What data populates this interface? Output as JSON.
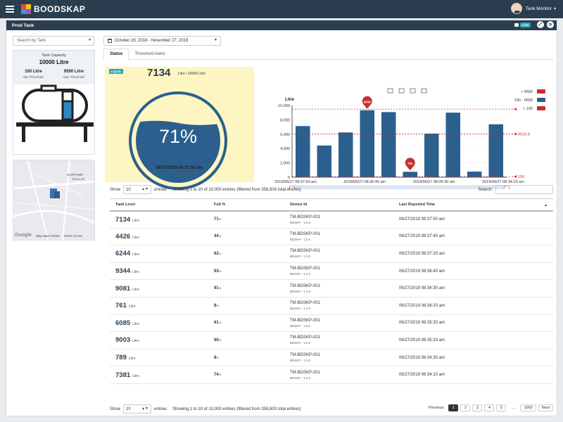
{
  "app": {
    "brand": "BOODSKAP",
    "user": "Tank Monitor"
  },
  "panel": {
    "title": "Prod Tank",
    "live": "Live"
  },
  "filters": {
    "search_placeholder": "Search by Tank",
    "date_range": "October 29, 2018 - November 27, 2019"
  },
  "capacity": {
    "title": "Tank Capacity",
    "value": "10000 Litre",
    "min_value": "100 Litre",
    "min_label": "Min Threshold",
    "max_value": "9500 Litre",
    "max_label": "Max Threshold"
  },
  "map": {
    "label1": "NORTHWE",
    "label2": "DALLAS",
    "google": "Google",
    "attribution": "Map data ©2019",
    "terms": "Terms of Use"
  },
  "tabs": [
    {
      "label": "Status"
    },
    {
      "label": "Threshold Alerts"
    }
  ],
  "level": {
    "badge": "LIQUID",
    "value": "7134",
    "sub": "Litre / 10000 Litre",
    "percent": "71%",
    "fill_fraction": 0.71,
    "time": "06/27/2019 08:37:50 am",
    "time_label": "Last Reported Time"
  },
  "chart_data": {
    "type": "bar",
    "ylabel": "Litre",
    "ylim": [
      0,
      10000
    ],
    "yticks": [
      "0",
      "2,000",
      "4,000",
      "6,000",
      "8,000",
      "10,000"
    ],
    "values": [
      7134,
      4426,
      6244,
      9344,
      9081,
      761,
      6085,
      9003,
      789,
      7381
    ],
    "xtick_labels": [
      "2019/06/27 08:37:50 am",
      "2019/06/27 08:36:40 am",
      "2019/06/27 08:35:30 am",
      "2019/06/27 08:34:10 am"
    ],
    "markers": [
      {
        "label": "9344",
        "value": 9344,
        "index": 3
      },
      {
        "label": "761",
        "value": 761,
        "index": 5
      }
    ],
    "reference_lines": [
      {
        "value": 9500,
        "label": ""
      },
      {
        "value": 6024.8,
        "label": "6024.8"
      },
      {
        "value": 100,
        "label": "100"
      }
    ],
    "legend": [
      {
        "label": "> 9500"
      },
      {
        "label": "100 - 9500"
      },
      {
        "label": "< 100"
      }
    ],
    "legend_position": "top-right",
    "colors": {
      "bar": "#2b5f8e",
      "alert": "#c9302c"
    }
  },
  "table": {
    "show_label": "Show",
    "entries_label": "entries",
    "page_size": "10",
    "info": "Showing 1 to 10 of 10,000 entries (filtered from 358,803 total entries)",
    "search_label": "Search:",
    "headers": [
      "Tank Level",
      "Full %",
      "Device Id",
      "Last Reported Time"
    ],
    "rows": [
      {
        "level": "7134",
        "unit": "Litre",
        "full": "71",
        "device": "TM-BDSKP-001",
        "version": "BDSKP - 1.0.0",
        "time": "06/27/2019 08:37:50 am"
      },
      {
        "level": "4426",
        "unit": "Litre",
        "full": "44",
        "device": "TM-BDSKP-001",
        "version": "BDSKP - 1.0.0",
        "time": "06/27/2019 08:37:40 am"
      },
      {
        "level": "6244",
        "unit": "Litre",
        "full": "62",
        "device": "TM-BDSKP-001",
        "version": "BDSKP - 1.0.0",
        "time": "06/27/2019 08:37:20 am"
      },
      {
        "level": "9344",
        "unit": "Litre",
        "full": "93",
        "device": "TM-BDSKP-001",
        "version": "BDSKP - 1.0.0",
        "time": "06/27/2019 08:36:40 am"
      },
      {
        "level": "9081",
        "unit": "Litre",
        "full": "91",
        "device": "TM-BDSKP-001",
        "version": "BDSKP - 1.0.0",
        "time": "06/27/2019 08:36:30 am"
      },
      {
        "level": "761",
        "unit": "Litre",
        "full": "8",
        "device": "TM-BDSKP-001",
        "version": "BDSKP - 1.0.0",
        "time": "06/27/2019 08:36:20 am"
      },
      {
        "level": "6085",
        "unit": "Litre",
        "full": "61",
        "device": "TM-BDSKP-001",
        "version": "BDSKP - 1.0.0",
        "time": "06/27/2019 08:35:30 am"
      },
      {
        "level": "9003",
        "unit": "Litre",
        "full": "90",
        "device": "TM-BDSKP-001",
        "version": "BDSKP - 1.0.0",
        "time": "06/27/2019 08:35:20 am"
      },
      {
        "level": "789",
        "unit": "Litre",
        "full": "8",
        "device": "TM-BDSKP-001",
        "version": "BDSKP - 1.0.0",
        "time": "06/27/2019 08:34:30 am"
      },
      {
        "level": "7381",
        "unit": "Litre",
        "full": "74",
        "device": "TM-BDSKP-001",
        "version": "BDSKP - 1.0.0",
        "time": "06/27/2019 08:34:10 am"
      }
    ],
    "pct_unit": "%"
  },
  "pagination": {
    "previous": "Previous",
    "pages": [
      "1",
      "2",
      "3",
      "4",
      "5",
      "…",
      "1000"
    ],
    "next": "Next",
    "current": "1"
  }
}
